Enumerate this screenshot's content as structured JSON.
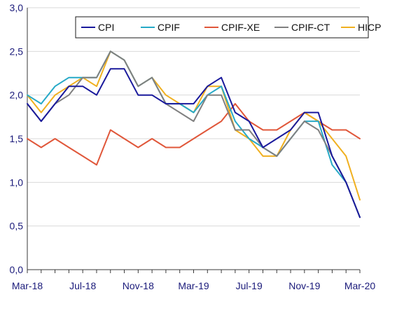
{
  "chart_data": {
    "type": "line",
    "title": "",
    "xlabel": "",
    "ylabel": "",
    "x": [
      "Mar-18",
      "Apr-18",
      "May-18",
      "Jun-18",
      "Jul-18",
      "Aug-18",
      "Sep-18",
      "Oct-18",
      "Nov-18",
      "Dec-18",
      "Jan-19",
      "Feb-19",
      "Mar-19",
      "Apr-19",
      "May-19",
      "Jun-19",
      "Jul-19",
      "Aug-19",
      "Sep-19",
      "Oct-19",
      "Nov-19",
      "Dec-19",
      "Jan-20",
      "Feb-20",
      "Mar-20"
    ],
    "x_tick_labels": [
      "Mar-18",
      "Jul-18",
      "Nov-18",
      "Mar-19",
      "Jul-19",
      "Nov-19",
      "Mar-20"
    ],
    "y_tick_labels": [
      "0,0",
      "0,5",
      "1,0",
      "1,5",
      "2,0",
      "2,5",
      "3,0"
    ],
    "ylim": [
      0,
      3
    ],
    "grid": "horizontal",
    "legend_position": "top-right",
    "series": [
      {
        "name": "CPI",
        "color": "#1a1a9c",
        "values": [
          1.9,
          1.7,
          1.9,
          2.1,
          2.1,
          2.0,
          2.3,
          2.3,
          2.0,
          2.0,
          1.9,
          1.9,
          1.9,
          2.1,
          2.2,
          1.8,
          1.7,
          1.4,
          1.5,
          1.6,
          1.8,
          1.8,
          1.3,
          1.0,
          0.6
        ]
      },
      {
        "name": "CPIF",
        "color": "#27a9c7",
        "values": [
          2.0,
          1.9,
          2.1,
          2.2,
          2.2,
          2.2,
          2.5,
          2.4,
          2.1,
          2.2,
          1.9,
          1.9,
          1.8,
          2.0,
          2.1,
          1.7,
          1.5,
          1.4,
          1.3,
          1.5,
          1.7,
          1.7,
          1.2,
          1.0,
          0.6
        ]
      },
      {
        "name": "CPIF-XE",
        "color": "#e0573a",
        "values": [
          1.5,
          1.4,
          1.5,
          1.4,
          1.3,
          1.2,
          1.6,
          1.5,
          1.4,
          1.5,
          1.4,
          1.4,
          1.5,
          1.6,
          1.7,
          1.9,
          1.7,
          1.6,
          1.6,
          1.7,
          1.8,
          1.7,
          1.6,
          1.6,
          1.5
        ]
      },
      {
        "name": "CPIF-CT",
        "color": "#808080",
        "values": [
          1.9,
          1.7,
          1.9,
          2.0,
          2.2,
          2.2,
          2.5,
          2.4,
          2.1,
          2.2,
          1.9,
          1.8,
          1.7,
          2.0,
          2.0,
          1.6,
          1.6,
          1.4,
          1.3,
          1.5,
          1.7,
          1.6,
          1.3,
          1.0,
          0.6
        ]
      },
      {
        "name": "HICP",
        "color": "#f0b020",
        "values": [
          2.0,
          1.8,
          2.0,
          2.1,
          2.2,
          2.1,
          2.5,
          2.4,
          2.1,
          2.2,
          2.0,
          1.9,
          1.8,
          2.1,
          2.1,
          1.6,
          1.5,
          1.3,
          1.3,
          1.6,
          1.8,
          1.7,
          1.5,
          1.3,
          0.8
        ]
      }
    ]
  }
}
